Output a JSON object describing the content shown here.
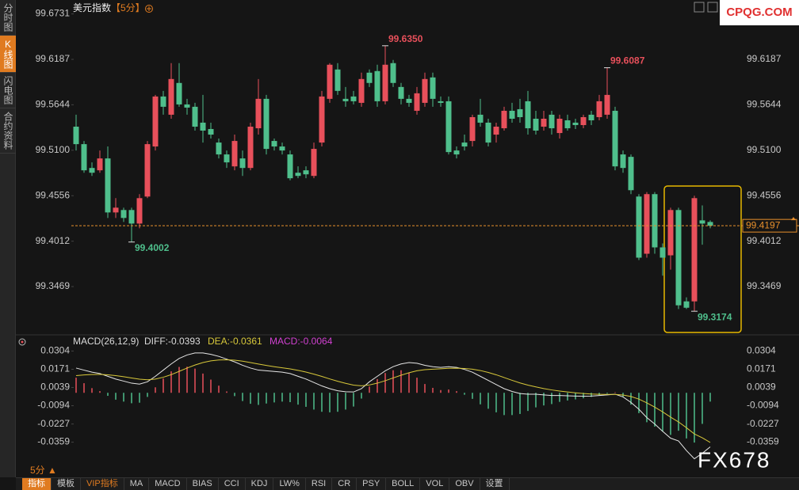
{
  "chart_data": [
    {
      "type": "candlestick",
      "title": "美元指数",
      "subtitle": "【5分】",
      "up_color": "#e8505b",
      "down_color": "#4fbf8c",
      "ylim": [
        99.292,
        99.685
      ],
      "yticks": [
        99.6731,
        99.6187,
        99.5644,
        {
          "value": 99.51,
          "label": "99.5100"
        },
        99.4556,
        99.4012,
        99.3469
      ],
      "grid": false,
      "open": [
        99.5382,
        99.5173,
        99.4888,
        99.486,
        99.5002,
        99.4356,
        99.4385,
        99.4385,
        99.4223,
        99.4546,
        99.5145,
        99.5743,
        99.5525,
        99.5905,
        99.5648,
        99.562,
        99.543,
        99.5354,
        99.5192,
        99.505,
        99.4907,
        99.5002,
        99.4888,
        99.5363,
        99.5715,
        99.5211,
        99.5145,
        99.505,
        99.4831,
        99.486,
        99.4793,
        99.5192,
        99.5715,
        99.6066,
        99.5715,
        99.5743,
        99.5667,
        99.6028,
        99.6047,
        99.5686,
        99.6142,
        99.5857,
        99.5715,
        99.5572,
        99.5667,
        99.5971,
        99.5686,
        99.5686,
        99.5097,
        99.5192,
        99.5211,
        99.5525,
        99.543,
        99.5287,
        99.5363,
        99.5572,
        99.5591,
        99.5686,
        99.5477,
        99.5382,
        99.5525,
        99.5306,
        99.5458,
        99.543,
        99.5401,
        99.5525,
        99.5496,
        99.5525,
        99.5572,
        99.505,
        99.5021,
        99.4546,
        99.3862,
        99.4575,
        99.3938,
        99.3843,
        99.4385,
        99.3292,
        99.3292,
        99.4261,
        99.4242
      ],
      "high": [
        99.5525,
        99.5211,
        99.4955,
        99.5097,
        99.5145,
        99.4527,
        99.4413,
        99.4413,
        99.4575,
        99.5211,
        99.5762,
        99.581,
        99.6142,
        99.6142,
        99.5715,
        99.5667,
        99.5762,
        99.543,
        99.524,
        99.5097,
        99.5287,
        99.5097,
        99.543,
        99.5952,
        99.5762,
        99.524,
        99.5192,
        99.5097,
        99.4907,
        99.4907,
        99.5192,
        99.581,
        99.6142,
        99.6142,
        99.5857,
        99.581,
        99.6028,
        99.6066,
        99.6123,
        99.635,
        99.618,
        99.5905,
        99.5762,
        99.5857,
        99.6028,
        99.6028,
        99.5743,
        99.5743,
        99.5145,
        99.5287,
        99.5525,
        99.5715,
        99.5477,
        99.543,
        99.562,
        99.5667,
        99.5715,
        99.581,
        99.5572,
        99.5572,
        99.5572,
        99.5525,
        99.5525,
        99.5477,
        99.5525,
        99.5572,
        99.5762,
        99.6087,
        99.562,
        99.5097,
        99.505,
        99.4575,
        99.46,
        99.46,
        99.3985,
        99.4413,
        99.4413,
        99.334,
        99.4556,
        99.444,
        99.4261
      ],
      "low": [
        99.5097,
        99.4831,
        99.4793,
        99.4831,
        99.429,
        99.429,
        99.4242,
        99.4002,
        99.4166,
        99.4527,
        99.5097,
        99.5525,
        99.5477,
        99.562,
        99.5525,
        99.5335,
        99.5192,
        99.524,
        99.5002,
        99.4888,
        99.486,
        99.4793,
        99.486,
        99.5287,
        99.505,
        99.5097,
        99.505,
        99.474,
        99.4765,
        99.4765,
        99.4765,
        99.5145,
        99.5667,
        99.5762,
        99.562,
        99.5648,
        99.562,
        99.5857,
        99.562,
        99.5648,
        99.5857,
        99.5648,
        99.562,
        99.5525,
        99.562,
        99.562,
        99.562,
        99.505,
        99.5002,
        99.5097,
        99.5145,
        99.5382,
        99.5145,
        99.5192,
        99.5335,
        99.543,
        99.543,
        99.5287,
        99.5287,
        99.5335,
        99.5287,
        99.524,
        99.5335,
        99.5354,
        99.5363,
        99.5401,
        99.5458,
        99.5477,
        99.486,
        99.4831,
        99.4575,
        99.3786,
        99.3815,
        99.3862,
        99.36,
        99.3672,
        99.32,
        99.32,
        99.3174,
        99.397,
        99.4166
      ],
      "close": [
        99.5173,
        99.486,
        99.4831,
        99.5002,
        99.4356,
        99.4413,
        99.429,
        99.4223,
        99.4527,
        99.5173,
        99.5743,
        99.562,
        99.5952,
        99.5648,
        99.561,
        99.5382,
        99.5335,
        99.5287,
        99.505,
        99.4955,
        99.5211,
        99.4888,
        99.5382,
        99.5715,
        99.5116,
        99.5145,
        99.5097,
        99.4765,
        99.4793,
        99.4812,
        99.5116,
        99.5743,
        99.6123,
        99.581,
        99.5686,
        99.5686,
        99.5952,
        99.5905,
        99.5686,
        99.6123,
        99.5905,
        99.5715,
        99.5667,
        99.5781,
        99.5952,
        99.5715,
        99.5667,
        99.5078,
        99.505,
        99.5145,
        99.5496,
        99.543,
        99.5192,
        99.5382,
        99.5572,
        99.5477,
        99.5496,
        99.5363,
        99.5335,
        99.5477,
        99.5363,
        99.5477,
        99.5363,
        99.5401,
        99.5496,
        99.5458,
        99.5686,
        99.5762,
        99.4907,
        99.4888,
        99.4622,
        99.3815,
        99.4575,
        99.3938,
        99.3815,
        99.4385,
        99.3245,
        99.3216,
        99.4527,
        99.4223,
        99.4197
      ],
      "annotations": [
        {
          "value": 99.635,
          "label": "99.6350"
        },
        {
          "value": 99.6087,
          "label": "99.6087"
        },
        {
          "value": 99.4002,
          "label": "99.4002"
        },
        {
          "value": 99.3174,
          "label": "99.3174"
        }
      ],
      "last_price": {
        "value": 99.4197,
        "label": "99.4197"
      },
      "last_price_color": "#e8902c"
    },
    {
      "type": "macd",
      "legend": [
        {
          "text": "MACD(26,12,9)",
          "color": "#dcdcdc"
        },
        {
          "text": "DIFF:-0.0393",
          "color": "#dcdcdc"
        },
        {
          "text": "DEA:-0.0361",
          "color": "#d8c83a"
        },
        {
          "text": "MACD:-0.0064",
          "color": "#d040d0"
        }
      ],
      "ylim": [
        -0.054,
        0.041
      ],
      "yticks": [
        0.0304,
        0.0171,
        0.0039,
        -0.0094,
        -0.0227,
        -0.0359
      ],
      "series": [
        {
          "style": "line",
          "color": "#e6e6e6",
          "values": [
            0.018,
            0.0165,
            0.015,
            0.014,
            0.012,
            0.01,
            0.0085,
            0.007,
            0.0063,
            0.008,
            0.012,
            0.0165,
            0.021,
            0.025,
            0.0275,
            0.029,
            0.029,
            0.028,
            0.0265,
            0.0245,
            0.0225,
            0.02,
            0.018,
            0.0165,
            0.016,
            0.0155,
            0.015,
            0.014,
            0.012,
            0.01,
            0.0075,
            0.005,
            0.003,
            0.0015,
            0.0008,
            0.0006,
            0.003,
            0.008,
            0.012,
            0.016,
            0.019,
            0.021,
            0.022,
            0.0215,
            0.02,
            0.019,
            0.0185,
            0.019,
            0.0185,
            0.017,
            0.015,
            0.012,
            0.009,
            0.006,
            0.003,
            0.001,
            -0.0005,
            -0.001,
            -0.001,
            -0.0015,
            -0.002,
            -0.002,
            -0.0022,
            -0.0024,
            -0.0025,
            -0.0024,
            -0.002,
            -0.0015,
            -0.001,
            -0.003,
            -0.007,
            -0.012,
            -0.018,
            -0.0227,
            -0.028,
            -0.033,
            -0.035,
            -0.042,
            -0.048,
            -0.044,
            -0.0393
          ]
        },
        {
          "style": "line",
          "color": "#d8c83a",
          "values": [
            0.0125,
            0.013,
            0.0133,
            0.0134,
            0.0131,
            0.0125,
            0.0117,
            0.0108,
            0.0099,
            0.0095,
            0.01,
            0.0113,
            0.0132,
            0.0156,
            0.018,
            0.0202,
            0.022,
            0.0232,
            0.0239,
            0.024,
            0.0237,
            0.023,
            0.022,
            0.0209,
            0.0199,
            0.019,
            0.0182,
            0.0174,
            0.0163,
            0.0151,
            0.0136,
            0.0119,
            0.0101,
            0.0084,
            0.0069,
            0.0056,
            0.0051,
            0.0057,
            0.007,
            0.0088,
            0.0108,
            0.0128,
            0.0146,
            0.016,
            0.0168,
            0.0172,
            0.0175,
            0.0178,
            0.0179,
            0.0177,
            0.0172,
            0.0162,
            0.0148,
            0.0131,
            0.0111,
            0.0091,
            0.0072,
            0.0056,
            0.0043,
            0.0031,
            0.0021,
            0.0013,
            0.0006,
            0,
            -0.0005,
            -0.0009,
            -0.0011,
            -0.0012,
            -0.0012,
            -0.0016,
            -0.0027,
            -0.0046,
            -0.0073,
            -0.0104,
            -0.0139,
            -0.0177,
            -0.0212,
            -0.0254,
            -0.0299,
            -0.0327,
            -0.0361
          ]
        },
        {
          "style": "bar",
          "up_color": "#e8505b",
          "down_color": "#4fbf8c",
          "values": [
            0.011,
            0.007,
            0.0034,
            0.0012,
            -0.0022,
            -0.005,
            -0.0064,
            -0.0076,
            -0.0072,
            -0.003,
            0.004,
            0.0104,
            0.0156,
            0.0188,
            0.019,
            0.0176,
            0.014,
            0.0096,
            0.0052,
            0.001,
            -0.0024,
            -0.006,
            -0.008,
            -0.0088,
            -0.0078,
            -0.007,
            -0.0064,
            -0.0068,
            -0.0086,
            -0.0102,
            -0.0122,
            -0.0138,
            -0.0142,
            -0.0138,
            -0.0122,
            -0.01,
            -0.0042,
            0.0046,
            0.01,
            0.0144,
            0.0164,
            0.0164,
            0.0148,
            0.011,
            0.0064,
            0.0036,
            0.002,
            0.0024,
            0.0012,
            -0.0014,
            -0.0044,
            -0.0084,
            -0.0116,
            -0.0142,
            -0.0162,
            -0.0162,
            -0.0154,
            -0.0132,
            -0.0106,
            -0.0092,
            -0.0082,
            -0.0066,
            -0.0056,
            -0.0048,
            -0.004,
            -0.003,
            -0.0018,
            -0.0006,
            0.0004,
            -0.0028,
            -0.0086,
            -0.0148,
            -0.0214,
            -0.0246,
            -0.0282,
            -0.0306,
            -0.0276,
            -0.0332,
            -0.0362,
            -0.0226,
            -0.0064
          ]
        }
      ]
    }
  ],
  "sidebar": {
    "tabs": [
      {
        "label": "分时图"
      },
      {
        "label": "K线图",
        "active": true
      },
      {
        "label": "闪电图"
      },
      {
        "label": "合约资料"
      }
    ]
  },
  "toolbar": {
    "period": "5分 ▲",
    "tabs": [
      {
        "label": "指标",
        "active": true
      },
      {
        "label": "模板"
      },
      {
        "label": "VIP指标",
        "vip": true
      },
      {
        "label": "MA"
      },
      {
        "label": "MACD"
      },
      {
        "label": "BIAS"
      },
      {
        "label": "CCI"
      },
      {
        "label": "KDJ"
      },
      {
        "label": "LW%"
      },
      {
        "label": "RSI"
      },
      {
        "label": "CR"
      },
      {
        "label": "PSY"
      },
      {
        "label": "BOLL"
      },
      {
        "label": "VOL"
      },
      {
        "label": "OBV"
      },
      {
        "label": "设置"
      }
    ]
  },
  "watermarks": {
    "site": "CPQG.COM",
    "brand": "FX678"
  }
}
